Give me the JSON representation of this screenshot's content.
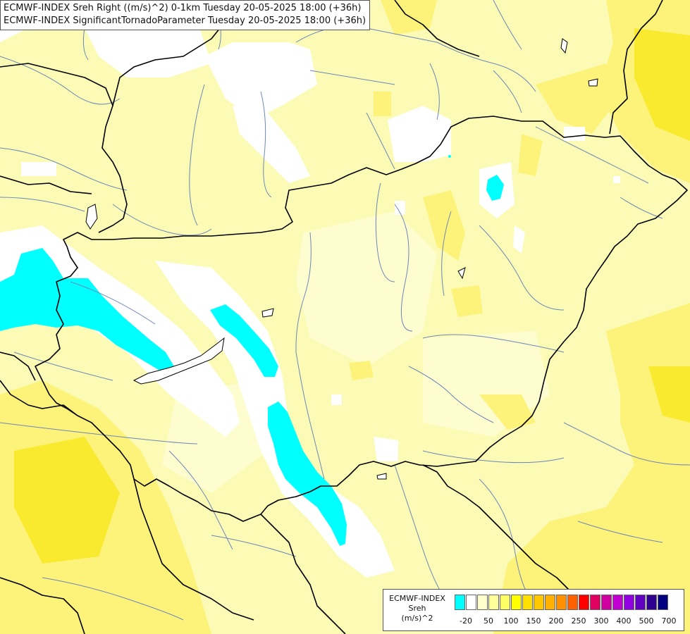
{
  "titles": {
    "line1": "ECMWF-INDEX Sreh Right ((m/s)^2) 0-1km Tuesday 20-05-2025 18:00 (+36h)",
    "line2": "ECMWF-INDEX SignificantTornadoParameter Tuesday 20-05-2025 18:00 (+36h)"
  },
  "legend": {
    "line1": "ECMWF-INDEX",
    "line2": "Sreh",
    "line3": "(m/s)^2",
    "swatch_colors": [
      "#00ffff",
      "#ffffff",
      "#ffffcc",
      "#ffff99",
      "#ffff66",
      "#ffff00",
      "#ffe000",
      "#ffc800",
      "#ffb000",
      "#ff9000",
      "#ff6000",
      "#ff0000",
      "#e00060",
      "#d000a0",
      "#c000d0",
      "#9000e0",
      "#6000c0",
      "#300090",
      "#000080"
    ],
    "tick_labels": [
      "-20",
      "50",
      "100",
      "150",
      "200",
      "250",
      "300",
      "400",
      "500",
      "700"
    ]
  },
  "colors": {
    "field_base": "#fbfbb6",
    "field_light": "#ffffcc",
    "field_mid": "#fdf57a",
    "field_strong": "#fbec3c",
    "negative": "#00ffff",
    "near_zero": "#ffffff",
    "borders": "#000000",
    "rivers": "#6e86b8"
  }
}
